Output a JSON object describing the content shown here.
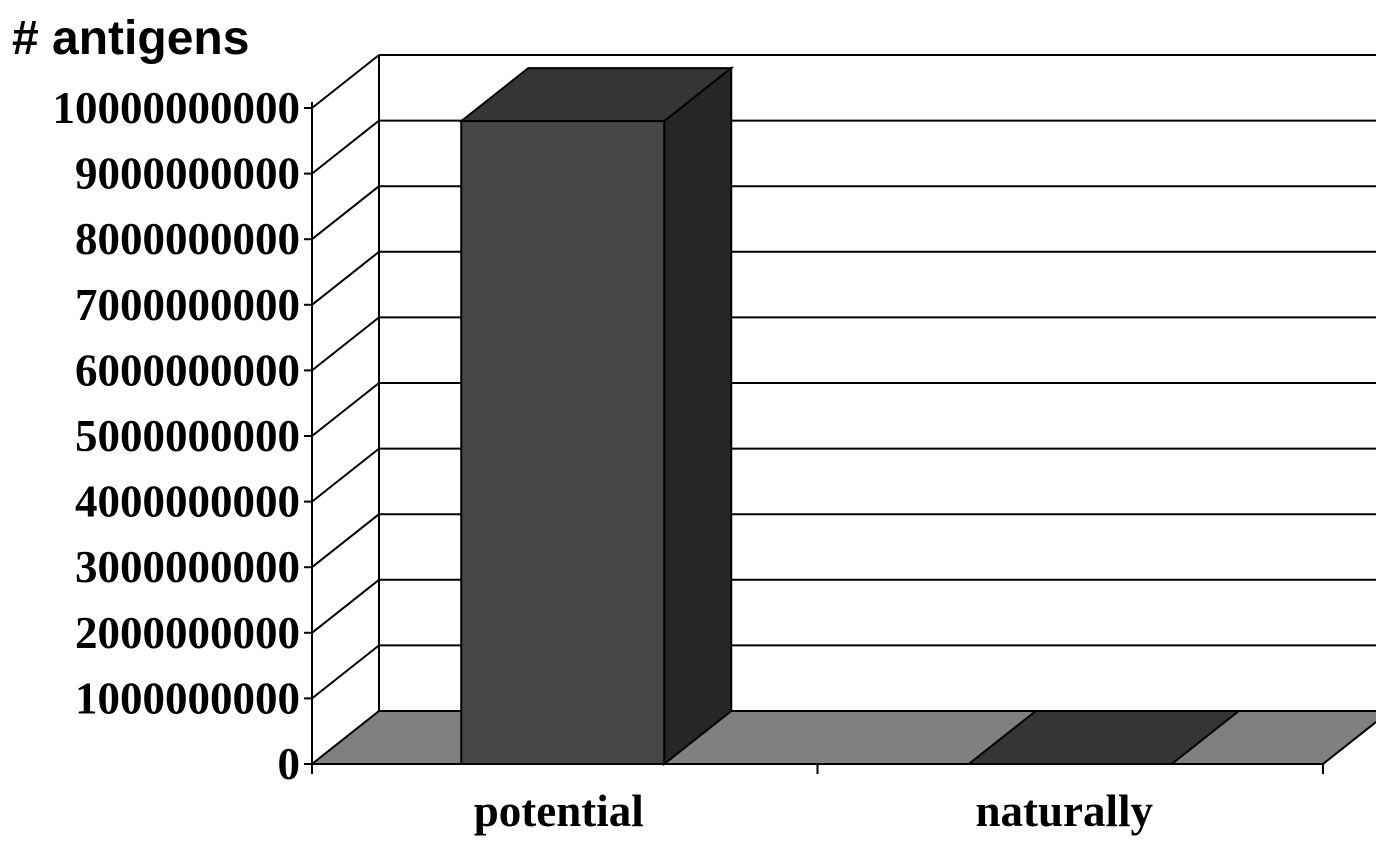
{
  "chart_data": {
    "type": "bar",
    "style": "3d",
    "ylabel": "# antigens",
    "categories": [
      "potential",
      "naturally"
    ],
    "values": [
      9800000000,
      0
    ],
    "ylim": [
      0,
      10000000000
    ],
    "yticks": [
      "0",
      "1000000000",
      "2000000000",
      "3000000000",
      "4000000000",
      "5000000000",
      "6000000000",
      "7000000000",
      "8000000000",
      "9000000000",
      "10000000000"
    ],
    "grid": true,
    "colors": {
      "bar_front": "#474747",
      "bar_top": "#353535",
      "bar_side": "#262626",
      "floor": "#808080",
      "grid": "#000000"
    }
  }
}
